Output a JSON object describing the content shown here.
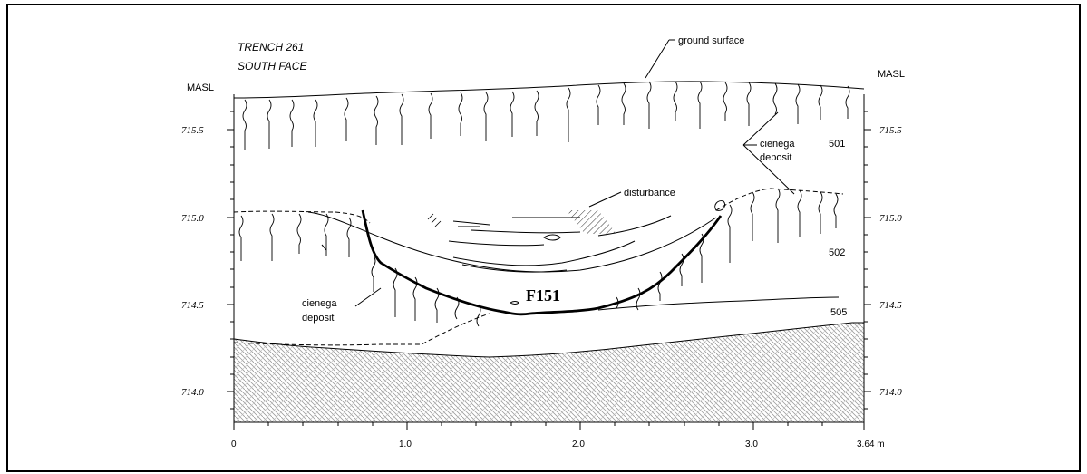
{
  "title": {
    "line1": "TRENCH 261",
    "line2": "SOUTH FACE"
  },
  "axis": {
    "y_unit_left": "MASL",
    "y_unit_right": "MASL",
    "y_ticks": [
      "715.5",
      "715.0",
      "714.5",
      "714.0"
    ],
    "x_ticks": [
      "0",
      "1.0",
      "2.0",
      "3.0",
      "3.64 m"
    ]
  },
  "labels": {
    "ground_surface": "ground surface",
    "cienega_right_1": "cienega",
    "cienega_right_2": "deposit",
    "cienega_left_1": "cienega",
    "cienega_left_2": "deposit",
    "disturbance": "disturbance",
    "feature": "F151",
    "unit_501": "501",
    "unit_502": "502",
    "unit_505": "505"
  }
}
